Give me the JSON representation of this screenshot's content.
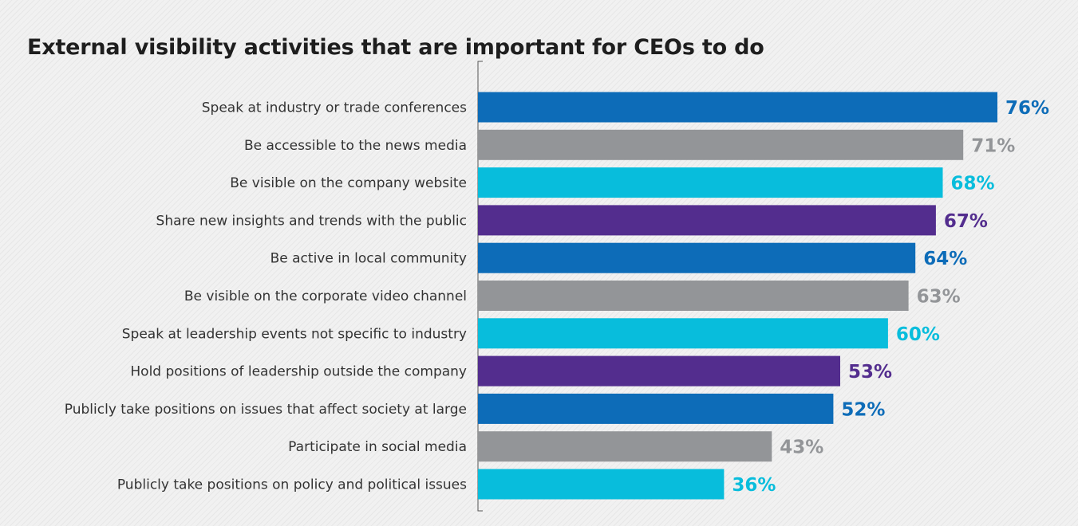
{
  "chart_data": {
    "type": "bar",
    "orientation": "horizontal",
    "title": "External visibility activities that are important for CEOs to do",
    "xlabel": "",
    "ylabel": "",
    "xlim": [
      0,
      80
    ],
    "grid": false,
    "legend": "none",
    "value_suffix": "%",
    "categories": [
      "Speak at industry or trade conferences",
      "Be accessible to the news media",
      "Be visible on the company website",
      "Share new insights and trends with the public",
      "Be active in local community",
      "Be visible on the corporate video channel",
      "Speak at leadership events not specific to industry",
      "Hold positions of leadership outside the company",
      "Publicly take positions on issues that affect society at large",
      "Participate in social media",
      "Publicly take positions on policy and political issues"
    ],
    "values": [
      76,
      71,
      68,
      67,
      64,
      63,
      60,
      53,
      52,
      43,
      36
    ],
    "value_labels": [
      "76%",
      "71%",
      "68%",
      "67%",
      "64%",
      "63%",
      "60%",
      "53%",
      "52%",
      "43%",
      "36%"
    ],
    "bar_colors": [
      "#0d6cb8",
      "#939598",
      "#08bddc",
      "#532d8e",
      "#0d6cb8",
      "#939598",
      "#08bddc",
      "#532d8e",
      "#0d6cb8",
      "#939598",
      "#08bddc"
    ]
  }
}
